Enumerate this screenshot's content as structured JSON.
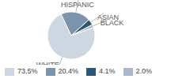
{
  "chart_data": {
    "type": "pie",
    "categories": [
      "WHITE",
      "HISPANIC",
      "ASIAN",
      "BLACK"
    ],
    "values": [
      73.5,
      20.4,
      4.1,
      2.0
    ],
    "value_labels": [
      "73.5%",
      "20.4%",
      "4.1%",
      "2.0%"
    ],
    "colors": [
      "#cdd6e1",
      "#7b94ae",
      "#2c5877",
      "#a9b9ca"
    ]
  }
}
